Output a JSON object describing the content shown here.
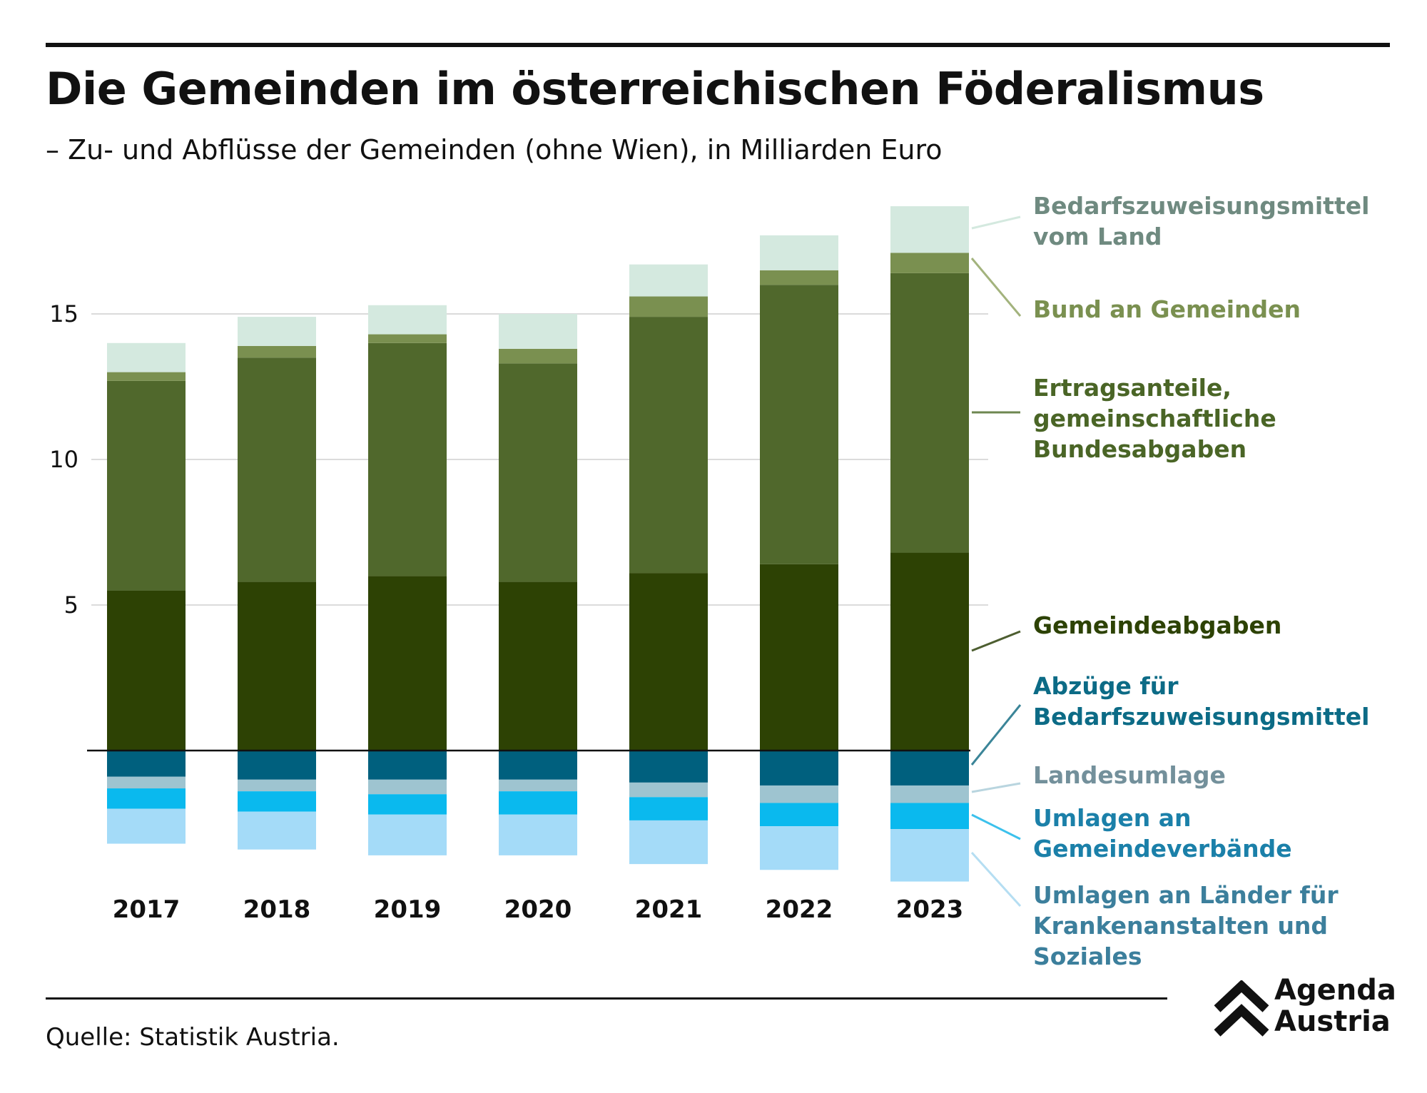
{
  "title": "Die Gemeinden im österreichischen Föderalismus",
  "subtitle": "– Zu- und Abflüsse der Gemeinden (ohne Wien), in Milliarden Euro",
  "source": "Quelle: Statistik Austria.",
  "logo": {
    "line1": "Agenda",
    "line2": "Austria"
  },
  "chart_data": {
    "type": "bar",
    "stacked": true,
    "categories": [
      "2017",
      "2018",
      "2019",
      "2020",
      "2021",
      "2022",
      "2023"
    ],
    "yticks": [
      5,
      10,
      15
    ],
    "ylim": [
      -4.6,
      18.8
    ],
    "grid": true,
    "legend_position": "right",
    "series": [
      {
        "name": "Gemeindeabgaben",
        "color": "#2d4204",
        "values": [
          5.5,
          5.8,
          6.0,
          5.8,
          6.1,
          6.4,
          6.8
        ]
      },
      {
        "name": "Ertragsanteile, gemeinschaftliche Bundesabgaben",
        "color": "#50682c",
        "values": [
          7.2,
          7.7,
          8.0,
          7.5,
          8.8,
          9.6,
          9.6
        ]
      },
      {
        "name": "Bund an Gemeinden",
        "color": "#7a9050",
        "values": [
          0.3,
          0.4,
          0.3,
          0.5,
          0.7,
          0.5,
          0.7
        ]
      },
      {
        "name": "Bedarfszuweisungsmittel vom Land",
        "color": "#d4e9df",
        "values": [
          1.0,
          1.0,
          1.0,
          1.2,
          1.1,
          1.2,
          1.6
        ]
      },
      {
        "name": "Abzüge für Bedarfszuweisungsmittel",
        "color": "#00607e",
        "values": [
          -0.9,
          -1.0,
          -1.0,
          -1.0,
          -1.1,
          -1.2,
          -1.2
        ]
      },
      {
        "name": "Landesumlage",
        "color": "#9ec4d0",
        "values": [
          -0.4,
          -0.4,
          -0.5,
          -0.4,
          -0.5,
          -0.6,
          -0.6
        ]
      },
      {
        "name": "Umlagen an Gemeindeverbände",
        "color": "#0ab9ee",
        "values": [
          -0.7,
          -0.7,
          -0.7,
          -0.8,
          -0.8,
          -0.8,
          -0.9
        ]
      },
      {
        "name": "Umlagen an Länder für Krankenanstalten und Soziales",
        "color": "#a4dbf8",
        "values": [
          -1.2,
          -1.3,
          -1.4,
          -1.4,
          -1.5,
          -1.5,
          -1.8
        ]
      }
    ],
    "legend": [
      {
        "lines": [
          "Bedarfszuweisungsmittel",
          "vom Land"
        ],
        "text_color": "#6f8a80",
        "leader_color": "#d4e9df"
      },
      {
        "lines": [
          "Bund an Gemeinden"
        ],
        "text_color": "#7a9050",
        "leader_color": "#a3b37d"
      },
      {
        "lines": [
          "Ertragsanteile,",
          "gemeinschaftliche",
          "Bundesabgaben"
        ],
        "text_color": "#4a6526",
        "leader_color": "#6e8750"
      },
      {
        "lines": [
          "Gemeindeabgaben"
        ],
        "text_color": "#2d4204",
        "leader_color": "#4d5e30"
      },
      {
        "lines": [
          "Abzüge für",
          "Bedarfszuweisungsmittel"
        ],
        "text_color": "#0c6b86",
        "leader_color": "#3b8598"
      },
      {
        "lines": [
          "Landesumlage"
        ],
        "text_color": "#73909b",
        "leader_color": "#b9d5df"
      },
      {
        "lines": [
          "Umlagen an",
          "Gemeindeverbände"
        ],
        "text_color": "#1b80a9",
        "leader_color": "#3cc1ec"
      },
      {
        "lines": [
          "Umlagen an Länder für",
          "Krankenanstalten und",
          "Soziales"
        ],
        "text_color": "#3c7f9c",
        "leader_color": "#b5def2"
      }
    ]
  }
}
